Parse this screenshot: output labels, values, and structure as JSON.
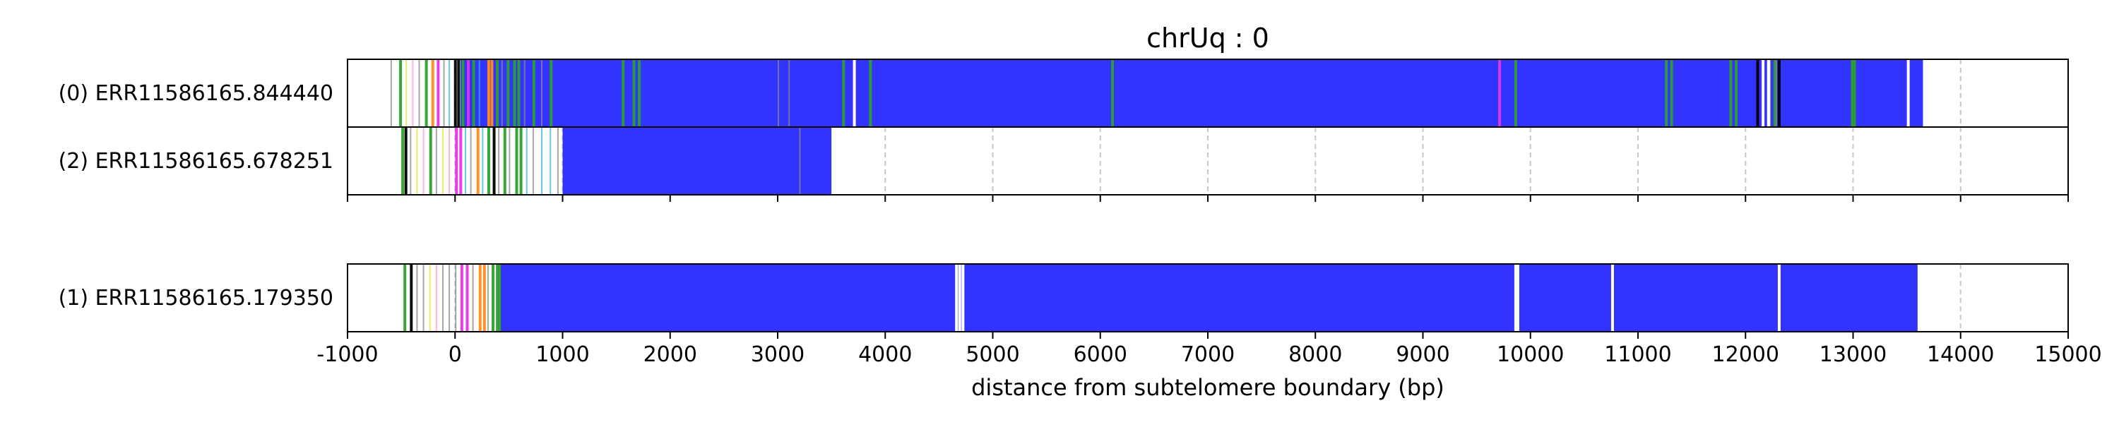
{
  "chart_data": {
    "type": "bar",
    "title": "chrUq : 0",
    "xlabel": "distance from subtelomere boundary (bp)",
    "ylabel": "",
    "xlim": [
      -1000,
      15000
    ],
    "xticks": [
      -1000,
      0,
      1000,
      2000,
      3000,
      4000,
      5000,
      6000,
      7000,
      8000,
      9000,
      10000,
      11000,
      12000,
      13000,
      14000,
      15000
    ],
    "xtick_labels": [
      "-1000",
      "0",
      "1000",
      "2000",
      "3000",
      "4000",
      "5000",
      "6000",
      "7000",
      "8000",
      "9000",
      "10000",
      "11000",
      "12000",
      "13000",
      "14000",
      "15000"
    ],
    "grid": "vertical dashed gridlines",
    "colors": {
      "main_fill": "#3333ff",
      "gap": "#ffffff",
      "green": "#2ca02c",
      "orange": "#ff8c1a",
      "magenta": "#e633e6",
      "yellow": "#e6e640",
      "grey": "#8a8a8a",
      "pink": "#ff9ec8",
      "cyan": "#33b3e6",
      "black": "#000000",
      "grid": "#c8c8c8"
    },
    "tracks": [
      {
        "label": "(0) ERR11586165.844440",
        "start": -600,
        "end": 13650,
        "main_from": 50,
        "main_to": 13650,
        "gaps": [
          3700,
          12150,
          12200,
          13500
        ],
        "marks": [
          {
            "x": -600,
            "c": "grey"
          },
          {
            "x": -520,
            "c": "green"
          },
          {
            "x": -460,
            "c": "yellow"
          },
          {
            "x": -400,
            "c": "pink"
          },
          {
            "x": -340,
            "c": "grey"
          },
          {
            "x": -280,
            "c": "green"
          },
          {
            "x": -220,
            "c": "orange"
          },
          {
            "x": -170,
            "c": "magenta"
          },
          {
            "x": -110,
            "c": "grey"
          },
          {
            "x": -60,
            "c": "cyan"
          },
          {
            "x": -10,
            "c": "black"
          },
          {
            "x": 20,
            "c": "black"
          },
          {
            "x": 60,
            "c": "green"
          },
          {
            "x": 110,
            "c": "magenta"
          },
          {
            "x": 160,
            "c": "green"
          },
          {
            "x": 220,
            "c": "cyan"
          },
          {
            "x": 300,
            "c": "orange"
          },
          {
            "x": 330,
            "c": "orange"
          },
          {
            "x": 380,
            "c": "green"
          },
          {
            "x": 430,
            "c": "grey"
          },
          {
            "x": 480,
            "c": "green"
          },
          {
            "x": 540,
            "c": "green"
          },
          {
            "x": 580,
            "c": "green"
          },
          {
            "x": 640,
            "c": "grey"
          },
          {
            "x": 720,
            "c": "green"
          },
          {
            "x": 800,
            "c": "grey"
          },
          {
            "x": 880,
            "c": "green"
          },
          {
            "x": 1550,
            "c": "green"
          },
          {
            "x": 1650,
            "c": "green"
          },
          {
            "x": 1700,
            "c": "green"
          },
          {
            "x": 3000,
            "c": "grey"
          },
          {
            "x": 3100,
            "c": "grey"
          },
          {
            "x": 3600,
            "c": "green"
          },
          {
            "x": 3850,
            "c": "green"
          },
          {
            "x": 6100,
            "c": "green"
          },
          {
            "x": 9700,
            "c": "magenta"
          },
          {
            "x": 9850,
            "c": "green"
          },
          {
            "x": 11250,
            "c": "green"
          },
          {
            "x": 11300,
            "c": "green"
          },
          {
            "x": 11850,
            "c": "green"
          },
          {
            "x": 11900,
            "c": "green"
          },
          {
            "x": 12100,
            "c": "black"
          },
          {
            "x": 12220,
            "c": "yellow"
          },
          {
            "x": 12260,
            "c": "green"
          },
          {
            "x": 12280,
            "c": "grey"
          },
          {
            "x": 12300,
            "c": "black"
          },
          {
            "x": 12980,
            "c": "green"
          },
          {
            "x": 13000,
            "c": "green"
          }
        ]
      },
      {
        "label": "(2) ERR11586165.678251",
        "start": -500,
        "end": 3500,
        "main_from": 1000,
        "main_to": 3500,
        "gaps": [],
        "marks": [
          {
            "x": -500,
            "c": "green"
          },
          {
            "x": -470,
            "c": "black"
          },
          {
            "x": -420,
            "c": "grey"
          },
          {
            "x": -360,
            "c": "yellow"
          },
          {
            "x": -300,
            "c": "pink"
          },
          {
            "x": -240,
            "c": "green"
          },
          {
            "x": -180,
            "c": "grey"
          },
          {
            "x": -120,
            "c": "yellow"
          },
          {
            "x": -60,
            "c": "pink"
          },
          {
            "x": 0,
            "c": "magenta"
          },
          {
            "x": 40,
            "c": "magenta"
          },
          {
            "x": 90,
            "c": "cyan"
          },
          {
            "x": 140,
            "c": "grey"
          },
          {
            "x": 200,
            "c": "orange"
          },
          {
            "x": 250,
            "c": "cyan"
          },
          {
            "x": 300,
            "c": "green"
          },
          {
            "x": 350,
            "c": "black"
          },
          {
            "x": 400,
            "c": "grey"
          },
          {
            "x": 450,
            "c": "green"
          },
          {
            "x": 500,
            "c": "grey"
          },
          {
            "x": 560,
            "c": "green"
          },
          {
            "x": 600,
            "c": "green"
          },
          {
            "x": 660,
            "c": "cyan"
          },
          {
            "x": 720,
            "c": "grey"
          },
          {
            "x": 800,
            "c": "cyan"
          },
          {
            "x": 880,
            "c": "cyan"
          },
          {
            "x": 950,
            "c": "grey"
          },
          {
            "x": 3200,
            "c": "grey"
          }
        ]
      },
      {
        "label": "(1) ERR11586165.179350",
        "start": -480,
        "end": 13600,
        "main_from": 420,
        "main_to": 13600,
        "gaps": [
          4650,
          4680,
          4710,
          9850,
          9870,
          10750,
          12300
        ],
        "marks": [
          {
            "x": -480,
            "c": "green"
          },
          {
            "x": -420,
            "c": "black"
          },
          {
            "x": -360,
            "c": "grey"
          },
          {
            "x": -300,
            "c": "grey"
          },
          {
            "x": -240,
            "c": "yellow"
          },
          {
            "x": -180,
            "c": "pink"
          },
          {
            "x": -120,
            "c": "grey"
          },
          {
            "x": -60,
            "c": "grey"
          },
          {
            "x": 0,
            "c": "grey"
          },
          {
            "x": 50,
            "c": "magenta"
          },
          {
            "x": 100,
            "c": "magenta"
          },
          {
            "x": 160,
            "c": "grey"
          },
          {
            "x": 220,
            "c": "orange"
          },
          {
            "x": 260,
            "c": "orange"
          },
          {
            "x": 300,
            "c": "grey"
          },
          {
            "x": 340,
            "c": "green"
          },
          {
            "x": 380,
            "c": "green"
          },
          {
            "x": 400,
            "c": "green"
          }
        ]
      }
    ]
  }
}
